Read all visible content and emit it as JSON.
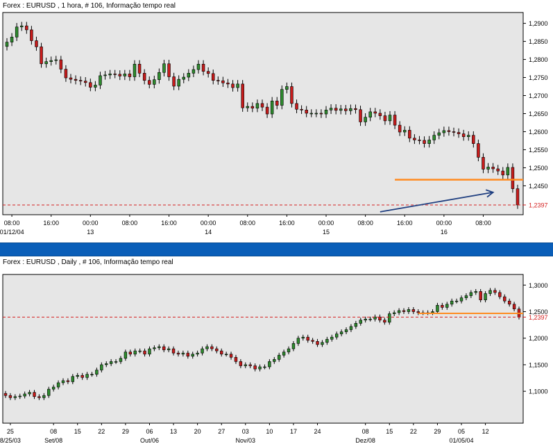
{
  "panels": {
    "top": {
      "title": "Forex : EURUSD , 1 hora, # 106, Informação tempo real"
    },
    "bottom": {
      "title": "Forex : EURUSD , Daily , # 106, Informação tempo real"
    }
  },
  "colors": {
    "up": "#2e8b2e",
    "down": "#c81c1c",
    "grid_bg": "#e6e6e6",
    "support": "#ff8a1f",
    "price_line": "#d42020",
    "arrow": "#1f3f80",
    "divider": "#0a5eb8"
  },
  "chart_data": [
    {
      "type": "candlestick",
      "title": "Forex : EURUSD , 1 hora, # 106, Informação tempo real",
      "ylim": [
        1.237,
        1.293
      ],
      "y_ticks": [
        "1,2900",
        "1,2850",
        "1,2800",
        "1,2750",
        "1,2700",
        "1,2650",
        "1,2600",
        "1,2550",
        "1,2500",
        "1,2450"
      ],
      "current_price": "1,2397",
      "support_level": 1.2467,
      "x_labels": [
        {
          "time": "08:00",
          "date": "01/12/04",
          "i": 1
        },
        {
          "time": "16:00",
          "date": "",
          "i": 9
        },
        {
          "time": "00:00",
          "date": "13",
          "i": 17
        },
        {
          "time": "08:00",
          "date": "",
          "i": 25
        },
        {
          "time": "16:00",
          "date": "",
          "i": 33
        },
        {
          "time": "00:00",
          "date": "14",
          "i": 41
        },
        {
          "time": "08:00",
          "date": "",
          "i": 49
        },
        {
          "time": "16:00",
          "date": "",
          "i": 57
        },
        {
          "time": "00:00",
          "date": "15",
          "i": 65
        },
        {
          "time": "08:00",
          "date": "",
          "i": 73
        },
        {
          "time": "16:00",
          "date": "",
          "i": 81
        },
        {
          "time": "00:00",
          "date": "16",
          "i": 89
        },
        {
          "time": "08:00",
          "date": "",
          "i": 97
        }
      ],
      "support_start_i": 79,
      "arrow": {
        "from_i": 76,
        "from": 1.2378,
        "to_i": 99,
        "to": 1.2432
      },
      "closes": [
        1.2848,
        1.2862,
        1.289,
        1.2893,
        1.2882,
        1.2852,
        1.2835,
        1.2788,
        1.2794,
        1.2797,
        1.2799,
        1.2773,
        1.2749,
        1.2745,
        1.2742,
        1.274,
        1.2736,
        1.2723,
        1.2729,
        1.2755,
        1.2757,
        1.276,
        1.2759,
        1.2754,
        1.276,
        1.2752,
        1.2787,
        1.2762,
        1.2742,
        1.2731,
        1.2744,
        1.2764,
        1.2788,
        1.2752,
        1.2726,
        1.2745,
        1.2751,
        1.2762,
        1.2772,
        1.2787,
        1.2767,
        1.2761,
        1.2742,
        1.2741,
        1.2735,
        1.2732,
        1.2722,
        1.2732,
        1.2666,
        1.267,
        1.2665,
        1.2678,
        1.2668,
        1.2649,
        1.2685,
        1.2673,
        1.2717,
        1.2725,
        1.2678,
        1.2662,
        1.266,
        1.2651,
        1.2651,
        1.2651,
        1.2649,
        1.266,
        1.2665,
        1.2659,
        1.2663,
        1.2658,
        1.2664,
        1.2661,
        1.2627,
        1.264,
        1.2655,
        1.2651,
        1.2644,
        1.263,
        1.2646,
        1.2618,
        1.2599,
        1.2604,
        1.2582,
        1.2577,
        1.2576,
        1.2567,
        1.2577,
        1.259,
        1.2597,
        1.2603,
        1.26,
        1.2598,
        1.2594,
        1.2586,
        1.259,
        1.2567,
        1.2529,
        1.2496,
        1.2502,
        1.2497,
        1.2491,
        1.248,
        1.2501,
        1.2442,
        1.2397
      ]
    },
    {
      "type": "candlestick",
      "title": "Forex : EURUSD , Daily , # 106, Informação tempo real",
      "ylim": [
        1.04,
        1.32
      ],
      "y_ticks": [
        "1,3000",
        "1,2500",
        "1,2000",
        "1,1500",
        "1,1000"
      ],
      "current_price": "1,2397",
      "support_level": 1.2467,
      "x_labels": [
        {
          "day": "25",
          "month": "8/25/03",
          "i": 1
        },
        {
          "day": "08",
          "month": "Set/08",
          "i": 10
        },
        {
          "day": "15",
          "month": "",
          "i": 15
        },
        {
          "day": "22",
          "month": "",
          "i": 20
        },
        {
          "day": "29",
          "month": "",
          "i": 25
        },
        {
          "day": "06",
          "month": "Out/06",
          "i": 30
        },
        {
          "day": "13",
          "month": "",
          "i": 35
        },
        {
          "day": "20",
          "month": "",
          "i": 40
        },
        {
          "day": "27",
          "month": "",
          "i": 45
        },
        {
          "day": "03",
          "month": "Nov/03",
          "i": 50
        },
        {
          "day": "10",
          "month": "",
          "i": 55
        },
        {
          "day": "17",
          "month": "",
          "i": 60
        },
        {
          "day": "24",
          "month": "",
          "i": 65
        },
        {
          "day": "08",
          "month": "Dez/08",
          "i": 75
        },
        {
          "day": "15",
          "month": "",
          "i": 80
        },
        {
          "day": "22",
          "month": "",
          "i": 85
        },
        {
          "day": "29",
          "month": "",
          "i": 90
        },
        {
          "day": "05",
          "month": "01/05/04",
          "i": 95
        },
        {
          "day": "12",
          "month": "",
          "i": 100
        }
      ],
      "support_start_i": 86,
      "closes": [
        1.092,
        1.088,
        1.09,
        1.091,
        1.095,
        1.098,
        1.09,
        1.088,
        1.092,
        1.104,
        1.108,
        1.116,
        1.12,
        1.118,
        1.128,
        1.13,
        1.126,
        1.132,
        1.132,
        1.14,
        1.15,
        1.152,
        1.156,
        1.156,
        1.162,
        1.174,
        1.17,
        1.176,
        1.176,
        1.17,
        1.18,
        1.182,
        1.184,
        1.178,
        1.18,
        1.172,
        1.17,
        1.172,
        1.166,
        1.17,
        1.172,
        1.18,
        1.184,
        1.18,
        1.176,
        1.17,
        1.17,
        1.164,
        1.156,
        1.148,
        1.15,
        1.148,
        1.142,
        1.146,
        1.146,
        1.156,
        1.16,
        1.168,
        1.174,
        1.18,
        1.19,
        1.2,
        1.202,
        1.196,
        1.194,
        1.188,
        1.192,
        1.198,
        1.202,
        1.208,
        1.212,
        1.216,
        1.222,
        1.228,
        1.234,
        1.236,
        1.236,
        1.24,
        1.234,
        1.23,
        1.246,
        1.248,
        1.252,
        1.25,
        1.254,
        1.25,
        1.248,
        1.248,
        1.248,
        1.25,
        1.262,
        1.258,
        1.264,
        1.27,
        1.27,
        1.276,
        1.28,
        1.286,
        1.288,
        1.272,
        1.284,
        1.29,
        1.286,
        1.278,
        1.27,
        1.264,
        1.255,
        1.2397
      ]
    }
  ]
}
